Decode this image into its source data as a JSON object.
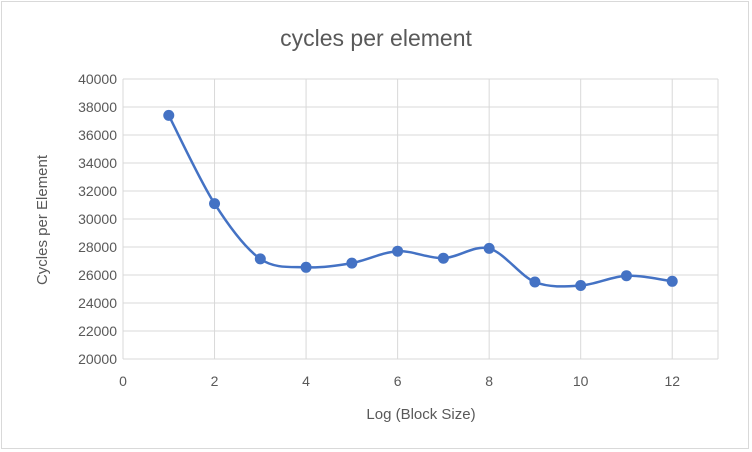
{
  "chart_data": {
    "type": "scatter",
    "title": "cycles per element",
    "xlabel": "Log (Block Size)",
    "ylabel": "Cycles per Element",
    "xlim": [
      0,
      13
    ],
    "ylim": [
      20000,
      40000
    ],
    "x_ticks": [
      0,
      2,
      4,
      6,
      8,
      10,
      12
    ],
    "y_ticks": [
      20000,
      22000,
      24000,
      26000,
      28000,
      30000,
      32000,
      34000,
      36000,
      38000,
      40000
    ],
    "grid": true,
    "legend": "none",
    "smooth_line": true,
    "series": [
      {
        "x": [
          1,
          2,
          3,
          4,
          5,
          6,
          7,
          8,
          9,
          10,
          11,
          12
        ],
        "y": [
          37400,
          31100,
          27150,
          26550,
          26850,
          27700,
          27200,
          27900,
          25500,
          25250,
          25950,
          25550
        ]
      }
    ],
    "colors": {
      "series": "#4472c4",
      "grid": "#d9d9d9",
      "text": "#595959"
    }
  }
}
